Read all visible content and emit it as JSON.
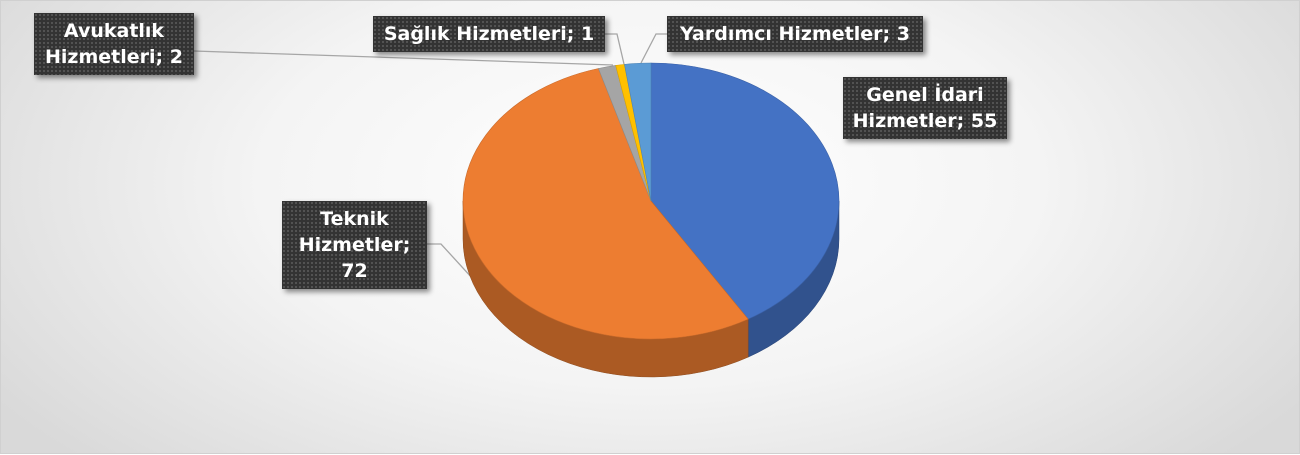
{
  "chart_data": {
    "type": "pie3d",
    "values": [
      55,
      72,
      2,
      1,
      3
    ],
    "value_labels": [
      "Genel İdari Hizmetler; 55",
      "Teknik Hizmetler; 72",
      "Avukatlık Hizmetleri; 2",
      "Sağlık Hizmetleri; 1",
      "Yardımcı Hizmetler; 3"
    ],
    "colors": [
      "#4472c4",
      "#ed7d31",
      "#a5a5a5",
      "#ffc000",
      "#5b9bd5"
    ]
  }
}
